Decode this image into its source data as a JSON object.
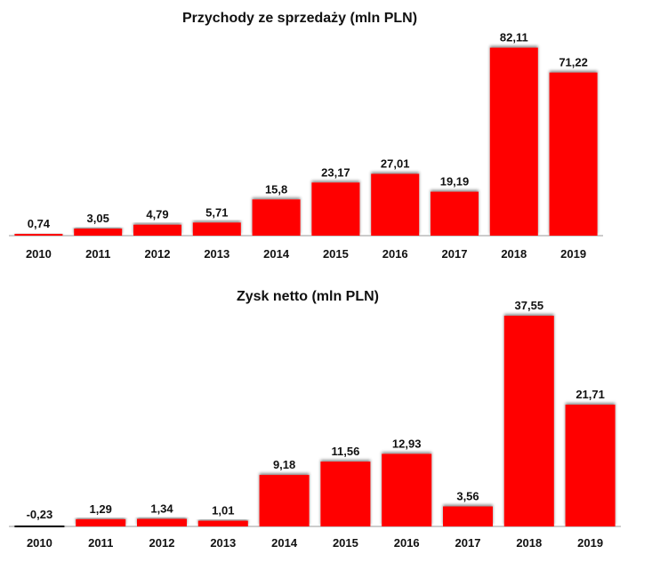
{
  "chart_data": [
    {
      "type": "bar",
      "title": "Przychody ze sprzedaży (mln PLN)",
      "categories": [
        "2010",
        "2011",
        "2012",
        "2013",
        "2014",
        "2015",
        "2016",
        "2017",
        "2018",
        "2019"
      ],
      "values": [
        0.74,
        3.05,
        4.79,
        5.71,
        15.8,
        23.17,
        27.01,
        19.19,
        82.11,
        71.22
      ],
      "data_labels": [
        "0,74",
        "3,05",
        "4,79",
        "5,71",
        "15,8",
        "23,17",
        "27,01",
        "19,19",
        "82,11",
        "71,22"
      ],
      "xlabel": "",
      "ylabel": "",
      "ylim": [
        0,
        87
      ],
      "grid": false,
      "legend": "none",
      "bar_color": "#ff0000"
    },
    {
      "type": "bar",
      "title": "Zysk netto  (mln PLN)",
      "categories": [
        "2010",
        "2011",
        "2012",
        "2013",
        "2014",
        "2015",
        "2016",
        "2017",
        "2018",
        "2019"
      ],
      "values": [
        -0.23,
        1.29,
        1.34,
        1.01,
        9.18,
        11.56,
        12.93,
        3.56,
        37.55,
        21.71
      ],
      "data_labels": [
        "-0,23",
        "1,29",
        "1,34",
        "1,01",
        "9,18",
        "11,56",
        "12,93",
        "3,56",
        "37,55",
        "21,71"
      ],
      "xlabel": "",
      "ylabel": "",
      "ylim": [
        -0.23,
        39
      ],
      "grid": false,
      "legend": "none",
      "bar_color": "#ff0000",
      "negative_bar_color": "#111111"
    }
  ]
}
